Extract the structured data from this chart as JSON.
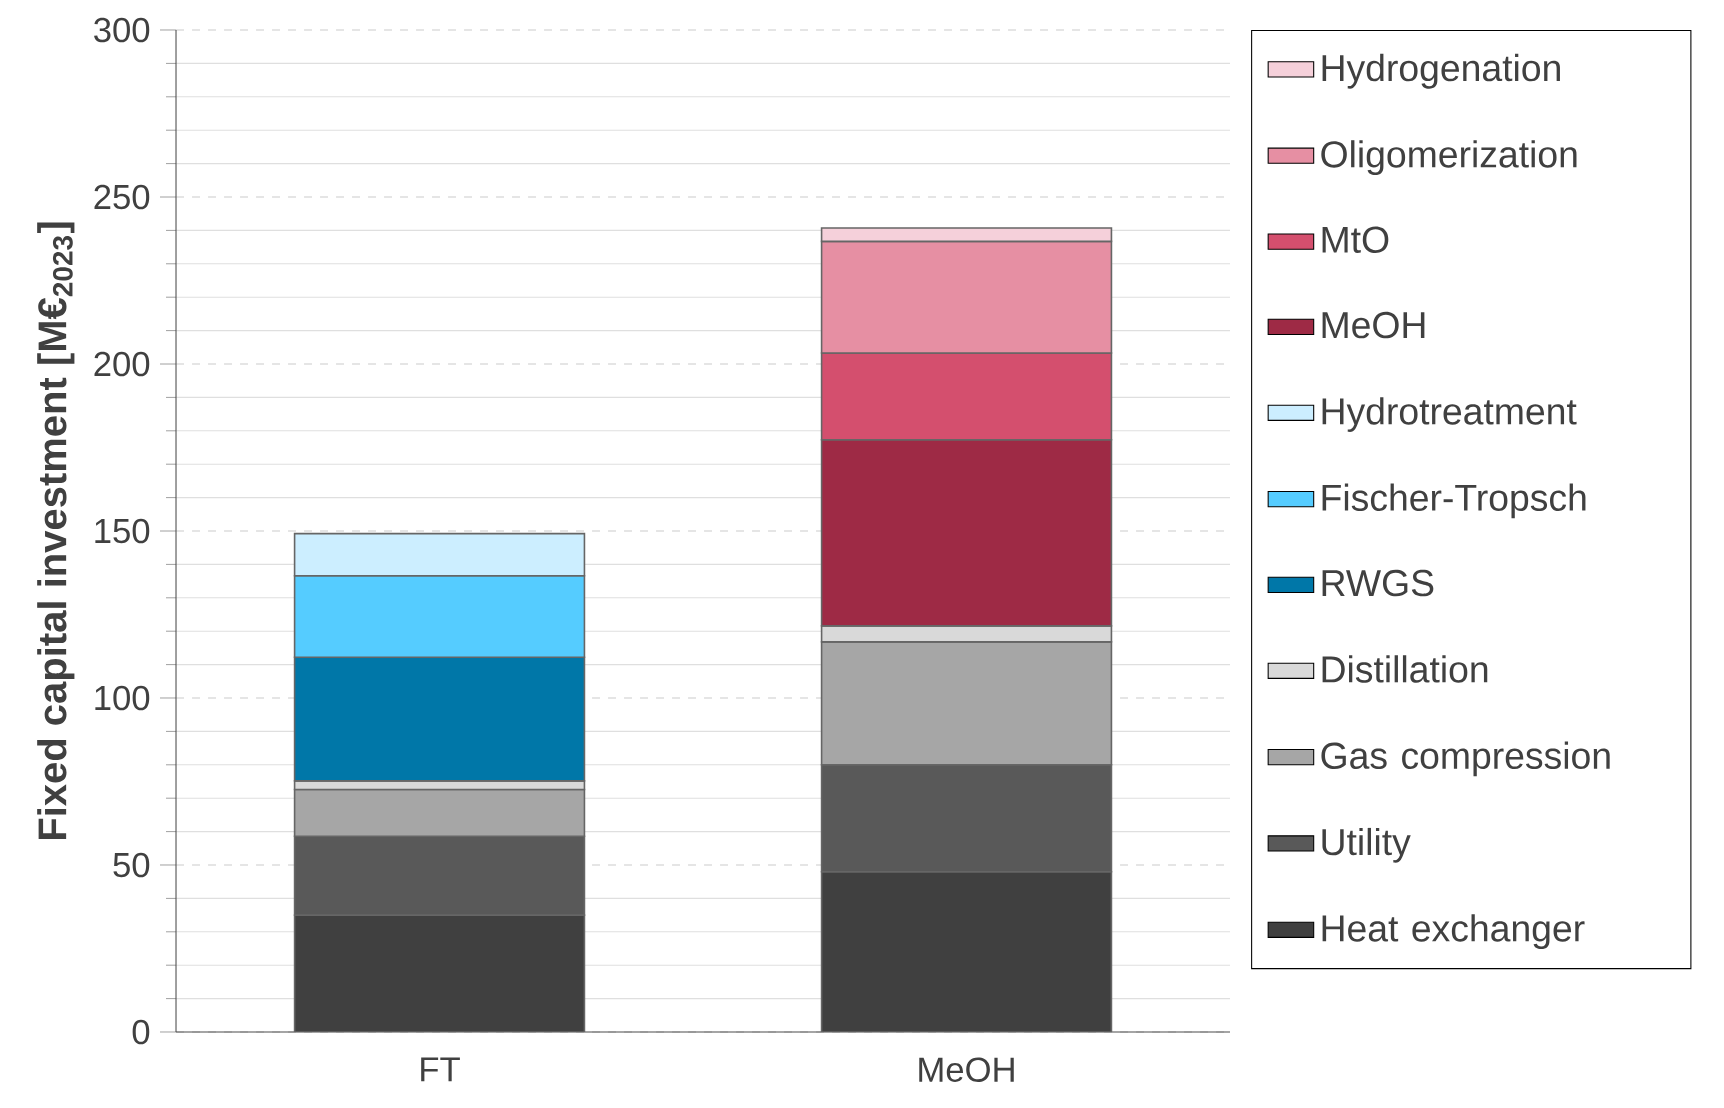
{
  "chart_data": {
    "type": "bar",
    "stacked": true,
    "ylabel": "Fixed capital investment [M€$_{2023}$]",
    "categories": [
      "FT",
      "MeOH"
    ],
    "series": [
      {
        "name": "Heat exchanger",
        "color": "#404040",
        "values": [
          35,
          48
        ]
      },
      {
        "name": "Utility",
        "color": "#595959",
        "values": [
          23.6,
          32
        ]
      },
      {
        "name": "Gas compression",
        "color": "#a6a6a6",
        "values": [
          14,
          36.8
        ]
      },
      {
        "name": "Distillation",
        "color": "#d9d9d9",
        "values": [
          2.6,
          4.8
        ]
      },
      {
        "name": "RWGS",
        "color": "#0077a8",
        "values": [
          37,
          null
        ]
      },
      {
        "name": "Fischer-Tropsch",
        "color": "#55ccff",
        "values": [
          24.4,
          null
        ]
      },
      {
        "name": "Hydrotreatment",
        "color": "#cceeff",
        "values": [
          12.6,
          null
        ]
      },
      {
        "name": "MeOH",
        "color": "#9e2a45",
        "values": [
          null,
          55.7
        ]
      },
      {
        "name": "MtO",
        "color": "#d44f6e",
        "values": [
          null,
          26
        ]
      },
      {
        "name": "Oligomerization",
        "color": "#e68fa3",
        "values": [
          null,
          33.4
        ]
      },
      {
        "name": "Hydrogenation",
        "color": "#f5d0da",
        "values": [
          null,
          4
        ]
      }
    ],
    "ylim": [
      0,
      300
    ],
    "yticks": [
      0,
      50,
      100,
      150,
      200,
      250,
      300
    ],
    "grid": "y",
    "legend": "right"
  }
}
